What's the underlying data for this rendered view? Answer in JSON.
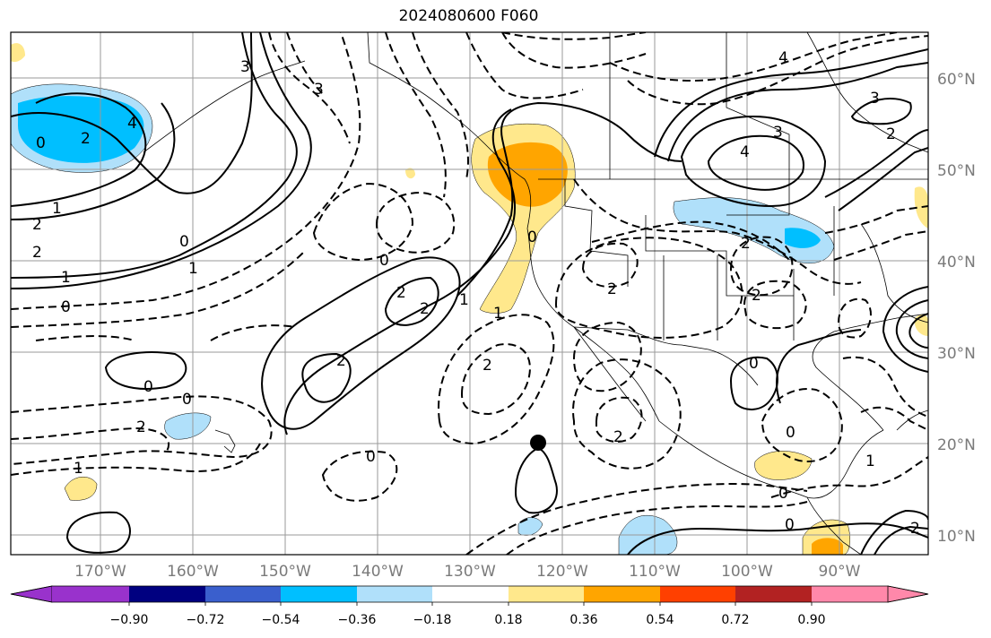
{
  "title": "2024080600 F060",
  "lat_labels": [
    "60°N",
    "50°N",
    "40°N",
    "30°N",
    "20°N",
    "10°N"
  ],
  "lon_labels": [
    "170°W",
    "160°W",
    "150°W",
    "140°W",
    "130°W",
    "120°W",
    "110°W",
    "100°W",
    "90°W"
  ],
  "colorbar": {
    "colors": [
      "#9932cc",
      "#000080",
      "#3a5fcd",
      "#00bfff",
      "#b0e0fa",
      "#ffffff",
      "#ffe88c",
      "#ffa500",
      "#ff4000",
      "#b22222",
      "#ff88aa"
    ],
    "labels": [
      "−0.90",
      "−0.72",
      "−0.54",
      "−0.36",
      "−0.18",
      "0.18",
      "0.36",
      "0.54",
      "0.72",
      "0.90"
    ]
  },
  "contour_labels": {
    "l1": "0",
    "l2": "2",
    "l3": "2",
    "l4": "1",
    "l5": "2",
    "l6": "1",
    "l7": "0",
    "l8": "0",
    "l9": "1",
    "l10": "0",
    "l11": "2",
    "l12": "2",
    "l13": "0",
    "l14": "2",
    "l15": "2",
    "l16": "0",
    "l17": "1",
    "l18": "2",
    "l19": "2",
    "l20": "0",
    "l21": "4",
    "l22": "3",
    "l23": "4",
    "l24": "3",
    "l25": "2",
    "l26": "2",
    "l27": "0",
    "l28": "0",
    "l29": "0",
    "l30": "0",
    "l31": "1",
    "l32": "2",
    "l33": "3",
    "l34": "4",
    "l35": "1",
    "l36": "1",
    "l37": "2",
    "l38": "3",
    "l39": "0",
    "l40": "2"
  }
}
